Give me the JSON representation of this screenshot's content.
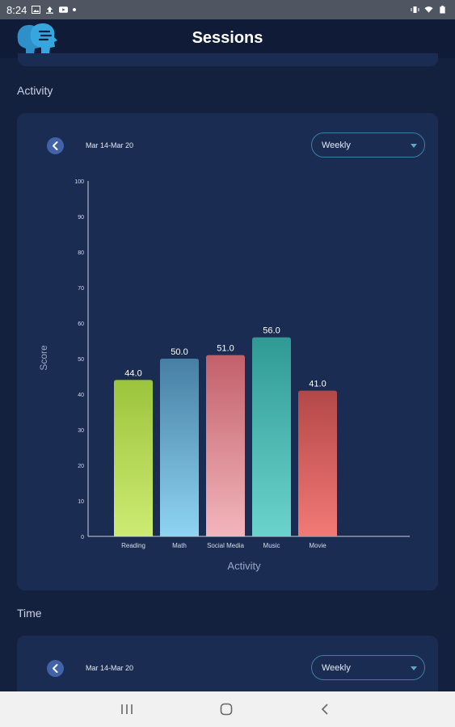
{
  "status_bar": {
    "time": "8:24"
  },
  "header": {
    "title": "Sessions"
  },
  "sections": {
    "activity": {
      "title": "Activity",
      "date_range": "Mar 14-Mar 20",
      "period": "Weekly"
    },
    "time": {
      "title": "Time",
      "date_range": "Mar 14-Mar 20",
      "period": "Weekly"
    }
  },
  "colors": {
    "background": "#13213f",
    "card": "#1b2c52",
    "accent": "#4263a8"
  },
  "chart_data": {
    "type": "bar",
    "categories": [
      "Reading",
      "Math",
      "Social Media",
      "Music",
      "Movie"
    ],
    "values": [
      44.0,
      50.0,
      51.0,
      56.0,
      41.0
    ],
    "value_labels": [
      "44.0",
      "50.0",
      "51.0",
      "56.0",
      "41.0"
    ],
    "xlabel": "Activity",
    "ylabel": "Score",
    "ylim": [
      0,
      100
    ],
    "yticks": [
      "0",
      "10",
      "20",
      "30",
      "40",
      "50",
      "60",
      "70",
      "80",
      "90",
      "100"
    ],
    "grid": false,
    "bar_gradients": [
      [
        "#9cc43c",
        "#cdeb73"
      ],
      [
        "#467fa3",
        "#8fd4f3"
      ],
      [
        "#c2606a",
        "#f2b6bc"
      ],
      [
        "#2f9a94",
        "#6bd3cc"
      ],
      [
        "#b34748",
        "#f27a76"
      ]
    ]
  }
}
